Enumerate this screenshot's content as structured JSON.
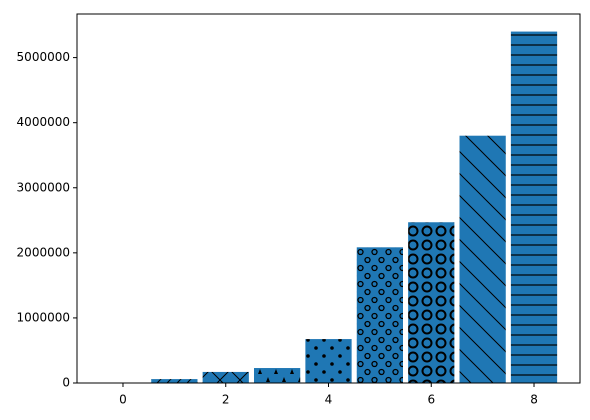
{
  "chart_data": {
    "type": "bar",
    "x": [
      0,
      1,
      2,
      3,
      4,
      5,
      6,
      7,
      8
    ],
    "values": [
      5000,
      60000,
      170000,
      230000,
      675000,
      2085000,
      2470000,
      3800000,
      5400000
    ],
    "hatches": [
      "",
      "/",
      "x",
      "*",
      ".",
      "o",
      "O",
      "\\",
      "-"
    ],
    "color": "#1f77b4",
    "xlim": [
      -0.895,
      8.895
    ],
    "xticks": [
      0,
      2,
      4,
      6,
      8
    ],
    "ylim": [
      0,
      5670000
    ],
    "yticks": [
      0,
      1000000,
      2000000,
      3000000,
      4000000,
      5000000
    ]
  }
}
